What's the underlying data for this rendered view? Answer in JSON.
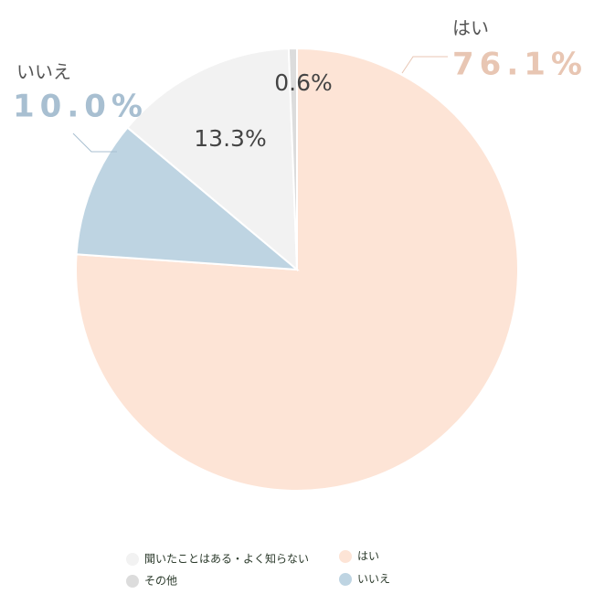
{
  "chart_data": {
    "type": "pie",
    "categories": [
      "はい",
      "いいえ",
      "聞いたことはある・よく知らない",
      "その他"
    ],
    "values": [
      76.1,
      10.0,
      13.3,
      0.6
    ],
    "value_labels": [
      "76.1%",
      "10.0%",
      "13.3%",
      "0.6%"
    ],
    "colors": [
      "#fde4d6",
      "#bed4e2",
      "#f2f2f2",
      "#dcdcdc"
    ]
  }
}
